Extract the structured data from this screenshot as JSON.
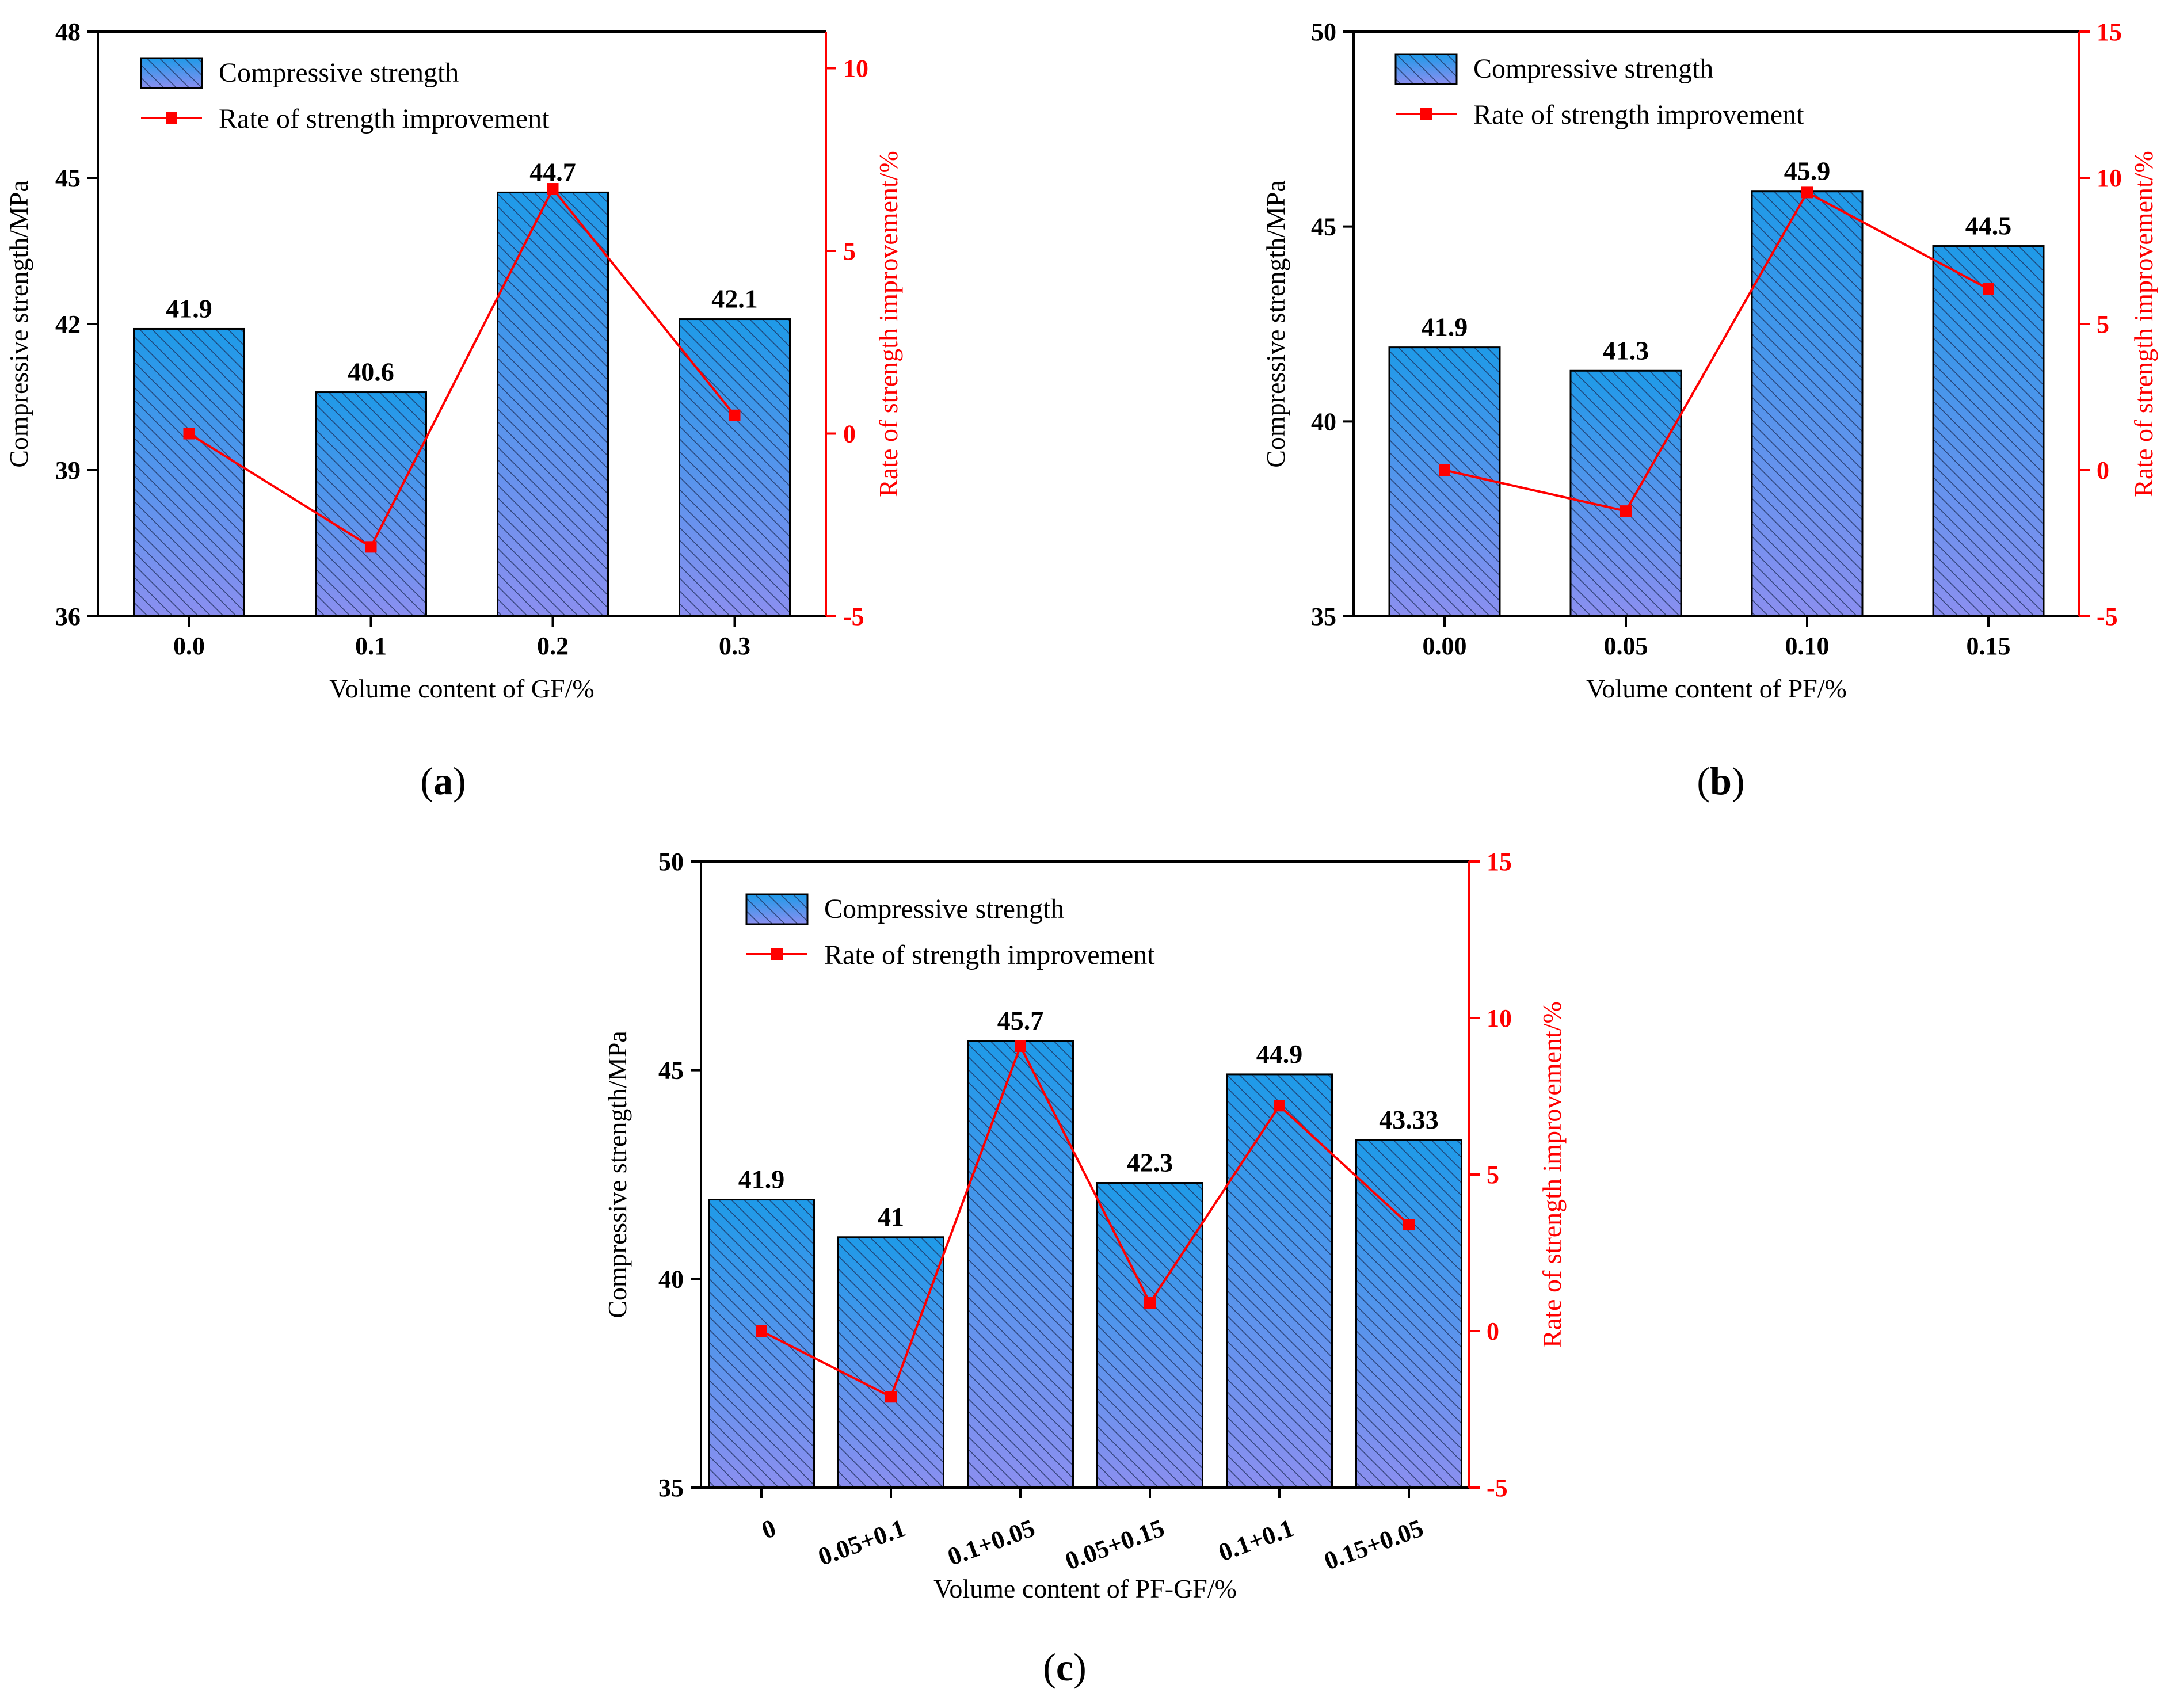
{
  "colors": {
    "bar_top": "#1e9ae8",
    "bar_bottom": "#8b8ff0",
    "bar_stroke": "#000000",
    "line": "#ff0000",
    "axis_left": "#000000",
    "axis_right": "#ff0000"
  },
  "chart_data": [
    {
      "panel": "a",
      "type": "bar+line",
      "xlabel": "Volume content of GF/%",
      "ylabel_left": "Compressive strength/MPa",
      "ylabel_right": "Rate of strength improvement/%",
      "categories": [
        "0.0",
        "0.1",
        "0.2",
        "0.3"
      ],
      "left_ylim": [
        36,
        48
      ],
      "left_ticks": [
        36,
        39,
        42,
        45,
        48
      ],
      "right_ylim": [
        -5,
        11
      ],
      "right_ticks": [
        -5,
        0,
        5,
        10
      ],
      "series": [
        {
          "name": "Compressive strength",
          "kind": "bar",
          "axis": "left",
          "values": [
            41.9,
            40.6,
            44.7,
            42.1
          ],
          "labels": [
            "41.9",
            "40.6",
            "44.7",
            "42.1"
          ]
        },
        {
          "name": "Rate of strength improvement",
          "kind": "line",
          "axis": "right",
          "values": [
            0,
            -3.1,
            6.7,
            0.5
          ]
        }
      ],
      "panel_label": [
        "(",
        "a",
        ")"
      ]
    },
    {
      "panel": "b",
      "type": "bar+line",
      "xlabel": "Volume content of PF/%",
      "ylabel_left": "Compressive strength/MPa",
      "ylabel_right": "Rate of strength improvement/%",
      "categories": [
        "0.00",
        "0.05",
        "0.10",
        "0.15"
      ],
      "left_ylim": [
        35,
        50
      ],
      "left_ticks": [
        35,
        40,
        45,
        50
      ],
      "right_ylim": [
        -5,
        15
      ],
      "right_ticks": [
        -5,
        0,
        5,
        10,
        15
      ],
      "series": [
        {
          "name": "Compressive strength",
          "kind": "bar",
          "axis": "left",
          "values": [
            41.9,
            41.3,
            45.9,
            44.5
          ],
          "labels": [
            "41.9",
            "41.3",
            "45.9",
            "44.5"
          ]
        },
        {
          "name": "Rate of strength improvement",
          "kind": "line",
          "axis": "right",
          "values": [
            0,
            -1.4,
            9.5,
            6.2
          ]
        }
      ],
      "panel_label": [
        "(",
        "b",
        ")"
      ]
    },
    {
      "panel": "c",
      "type": "bar+line",
      "xlabel": "Volume content of PF-GF/%",
      "ylabel_left": "Compressive strength/MPa",
      "ylabel_right": "Rate of strength improvement/%",
      "categories": [
        "0",
        "0.05+0.1",
        "0.1+0.05",
        "0.05+0.15",
        "0.1+0.1",
        "0.15+0.05"
      ],
      "left_ylim": [
        35,
        50
      ],
      "left_ticks": [
        35,
        40,
        45,
        50
      ],
      "right_ylim": [
        -5,
        15
      ],
      "right_ticks": [
        -5,
        0,
        5,
        10,
        15
      ],
      "series": [
        {
          "name": "Compressive strength",
          "kind": "bar",
          "axis": "left",
          "values": [
            41.9,
            41,
            45.7,
            42.3,
            44.9,
            43.33
          ],
          "labels": [
            "41.9",
            "41",
            "45.7",
            "42.3",
            "44.9",
            "43.33"
          ]
        },
        {
          "name": "Rate of strength improvement",
          "kind": "line",
          "axis": "right",
          "values": [
            0,
            -2.1,
            9.1,
            0.9,
            7.2,
            3.4
          ]
        }
      ],
      "panel_label": [
        "(",
        "c",
        ")"
      ]
    }
  ]
}
